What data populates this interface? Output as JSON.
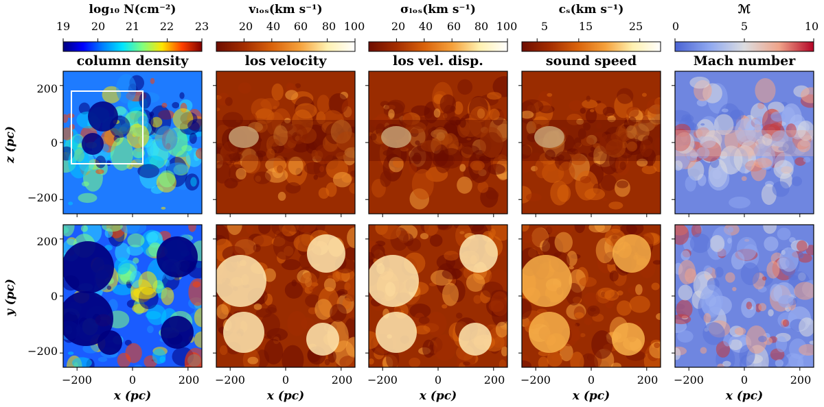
{
  "figure": {
    "panels": [
      {
        "title": "column density",
        "colorbar_label": "log₁₀ N(cm⁻²)",
        "colormap": "jet",
        "colors": [
          "#00007f",
          "#0000ff",
          "#0080ff",
          "#00e5ff",
          "#7fff7f",
          "#ffe500",
          "#ff4000",
          "#7f0000"
        ],
        "ticks": [
          "19",
          "20",
          "21",
          "22",
          "23"
        ]
      },
      {
        "title": "los velocity",
        "colorbar_label": "vₗₒₛ(km s⁻¹)",
        "colormap": "afmhot",
        "colors": [
          "#6e0d00",
          "#a32d00",
          "#d9620b",
          "#f5a03a",
          "#fff1b0",
          "#ffffff"
        ],
        "ticks": [
          "20",
          "40",
          "60",
          "80",
          "100"
        ]
      },
      {
        "title": "los vel. disp.",
        "colorbar_label": "σₗₒₛ(km s⁻¹)",
        "colormap": "afmhot",
        "colors": [
          "#6e0d00",
          "#a32d00",
          "#d9620b",
          "#f5a03a",
          "#fff1b0",
          "#ffffff"
        ],
        "ticks": [
          "20",
          "40",
          "60",
          "80",
          "100"
        ]
      },
      {
        "title": "sound speed",
        "colorbar_label": "cₛ(km s⁻¹)",
        "colormap": "afmhot",
        "colors": [
          "#6e0d00",
          "#a32d00",
          "#d9620b",
          "#f5a03a",
          "#fff1b0",
          "#ffffff"
        ],
        "ticks": [
          "5",
          "15",
          "25"
        ]
      },
      {
        "title": "Mach number",
        "colorbar_label": "ℳ",
        "colormap": "coolwarm",
        "colors": [
          "#4a63d3",
          "#8fa8f0",
          "#dcdde0",
          "#f0a48a",
          "#b40426"
        ],
        "ticks": [
          "0",
          "5",
          "10"
        ]
      }
    ],
    "rows": [
      {
        "y_axis_label": "z (pc)",
        "y_ticks": [
          "200",
          "0",
          "−200"
        ]
      },
      {
        "y_axis_label": "y (pc)",
        "y_ticks": [
          "200",
          "0",
          "−200"
        ]
      }
    ],
    "x_axis_label": "x (pc)",
    "x_ticks": [
      "−200",
      "0",
      "200"
    ]
  }
}
